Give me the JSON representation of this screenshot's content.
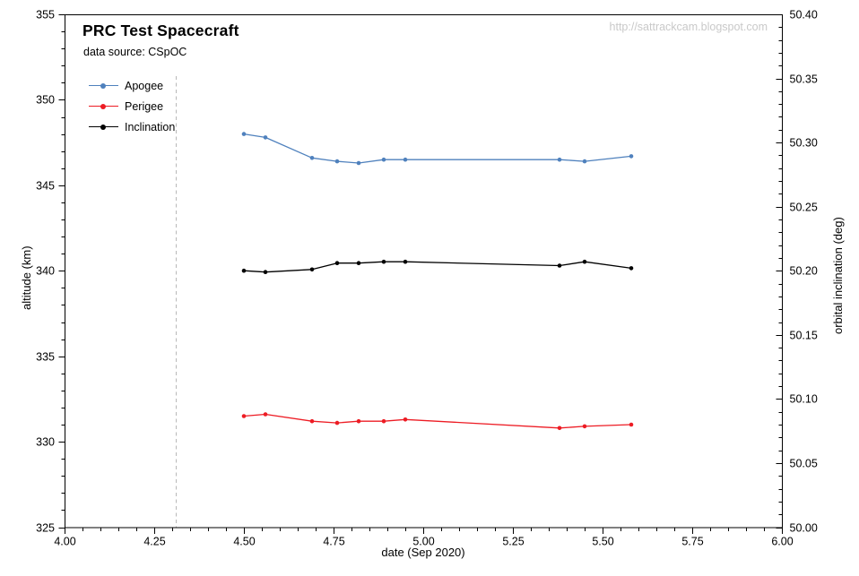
{
  "page": {
    "watermark": "http://sattrackcam.blogspot.com"
  },
  "chart_data": {
    "type": "line",
    "title": "PRC Test Spacecraft",
    "subtitle": "data source: CSpOC",
    "xlabel": "date (Sep 2020)",
    "ylabel_left": "altitude (km)",
    "ylabel_right": "orbital inclination (deg)",
    "xlim": [
      4.0,
      6.0
    ],
    "ylim_left": [
      325,
      355
    ],
    "ylim_right": [
      50.0,
      50.4
    ],
    "x_major_step": 0.25,
    "x_minor_step": 0.05,
    "y_left_major_step": 5,
    "y_left_minor_step": 1,
    "y_right_major_step": 0.05,
    "y_right_minor_step": 0.01,
    "grid": false,
    "legend_position": "top-left",
    "vline": {
      "x": 4.31,
      "style": "dashed",
      "color": "#b8b8b8"
    },
    "x": [
      4.5,
      4.56,
      4.69,
      4.76,
      4.82,
      4.89,
      4.95,
      5.38,
      5.45,
      5.58
    ],
    "series": [
      {
        "name": "Apogee",
        "axis": "left",
        "color": "#4f81bd",
        "values": [
          348.0,
          347.8,
          346.6,
          346.4,
          346.3,
          346.5,
          346.5,
          346.5,
          346.4,
          346.7
        ]
      },
      {
        "name": "Perigee",
        "axis": "left",
        "color": "#ed1c24",
        "values": [
          331.5,
          331.6,
          331.2,
          331.1,
          331.2,
          331.2,
          331.3,
          330.8,
          330.9,
          331.0
        ]
      },
      {
        "name": "Inclination",
        "axis": "right",
        "color": "#000000",
        "values": [
          50.2,
          50.199,
          50.201,
          50.206,
          50.206,
          50.207,
          50.207,
          50.204,
          50.207,
          50.202
        ]
      }
    ]
  }
}
